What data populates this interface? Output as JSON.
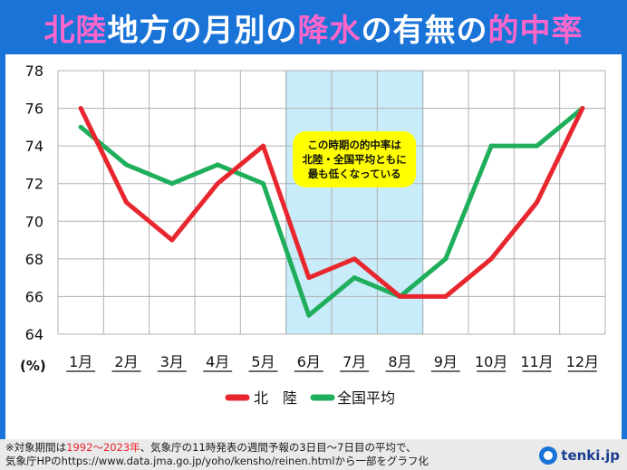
{
  "title": {
    "part1": "北陸",
    "part2": "地方の月別の",
    "part3": "降水",
    "part4": "の有無の",
    "part5": "的中率"
  },
  "footer": {
    "prefix": "※対象期間は",
    "years": "1992～2023年",
    "line1_rest": "、気象庁の11時発表の週間予報の3日目～7日目の平均で、",
    "line2": "気象庁HPのhttps://www.data.jma.go.jp/yoho/kensho/reinen.htmlから一部をグラフ化"
  },
  "logo": {
    "text": "tenki.jp",
    "icon": "tenki-logo-icon"
  },
  "colors": {
    "hokuriku": "#e8262e",
    "national": "#1fae5b",
    "highlight": "#c8ecfa",
    "callout": "#ffff00",
    "frame": "#1a73d6"
  },
  "chart_data": {
    "type": "line",
    "categories": [
      "1月",
      "2月",
      "3月",
      "4月",
      "5月",
      "6月",
      "7月",
      "8月",
      "9月",
      "10月",
      "11月",
      "12月"
    ],
    "series": [
      {
        "name": "北　陸",
        "values": [
          76,
          71,
          69,
          72,
          74,
          67,
          68,
          66,
          66,
          68,
          71,
          76
        ]
      },
      {
        "name": "全国平均",
        "values": [
          75,
          73,
          72,
          73,
          72,
          65,
          67,
          66,
          68,
          74,
          74,
          76
        ]
      }
    ],
    "ylim": [
      64,
      78
    ],
    "yticks": [
      64,
      66,
      68,
      70,
      72,
      74,
      76,
      78
    ],
    "ylabel": "(%)",
    "grid": true,
    "legend": "bottom",
    "highlight_months": [
      "6月",
      "7月",
      "8月"
    ],
    "annotation": [
      "この時期の的中率は",
      "北陸・全国平均ともに",
      "最も低くなっている"
    ]
  }
}
